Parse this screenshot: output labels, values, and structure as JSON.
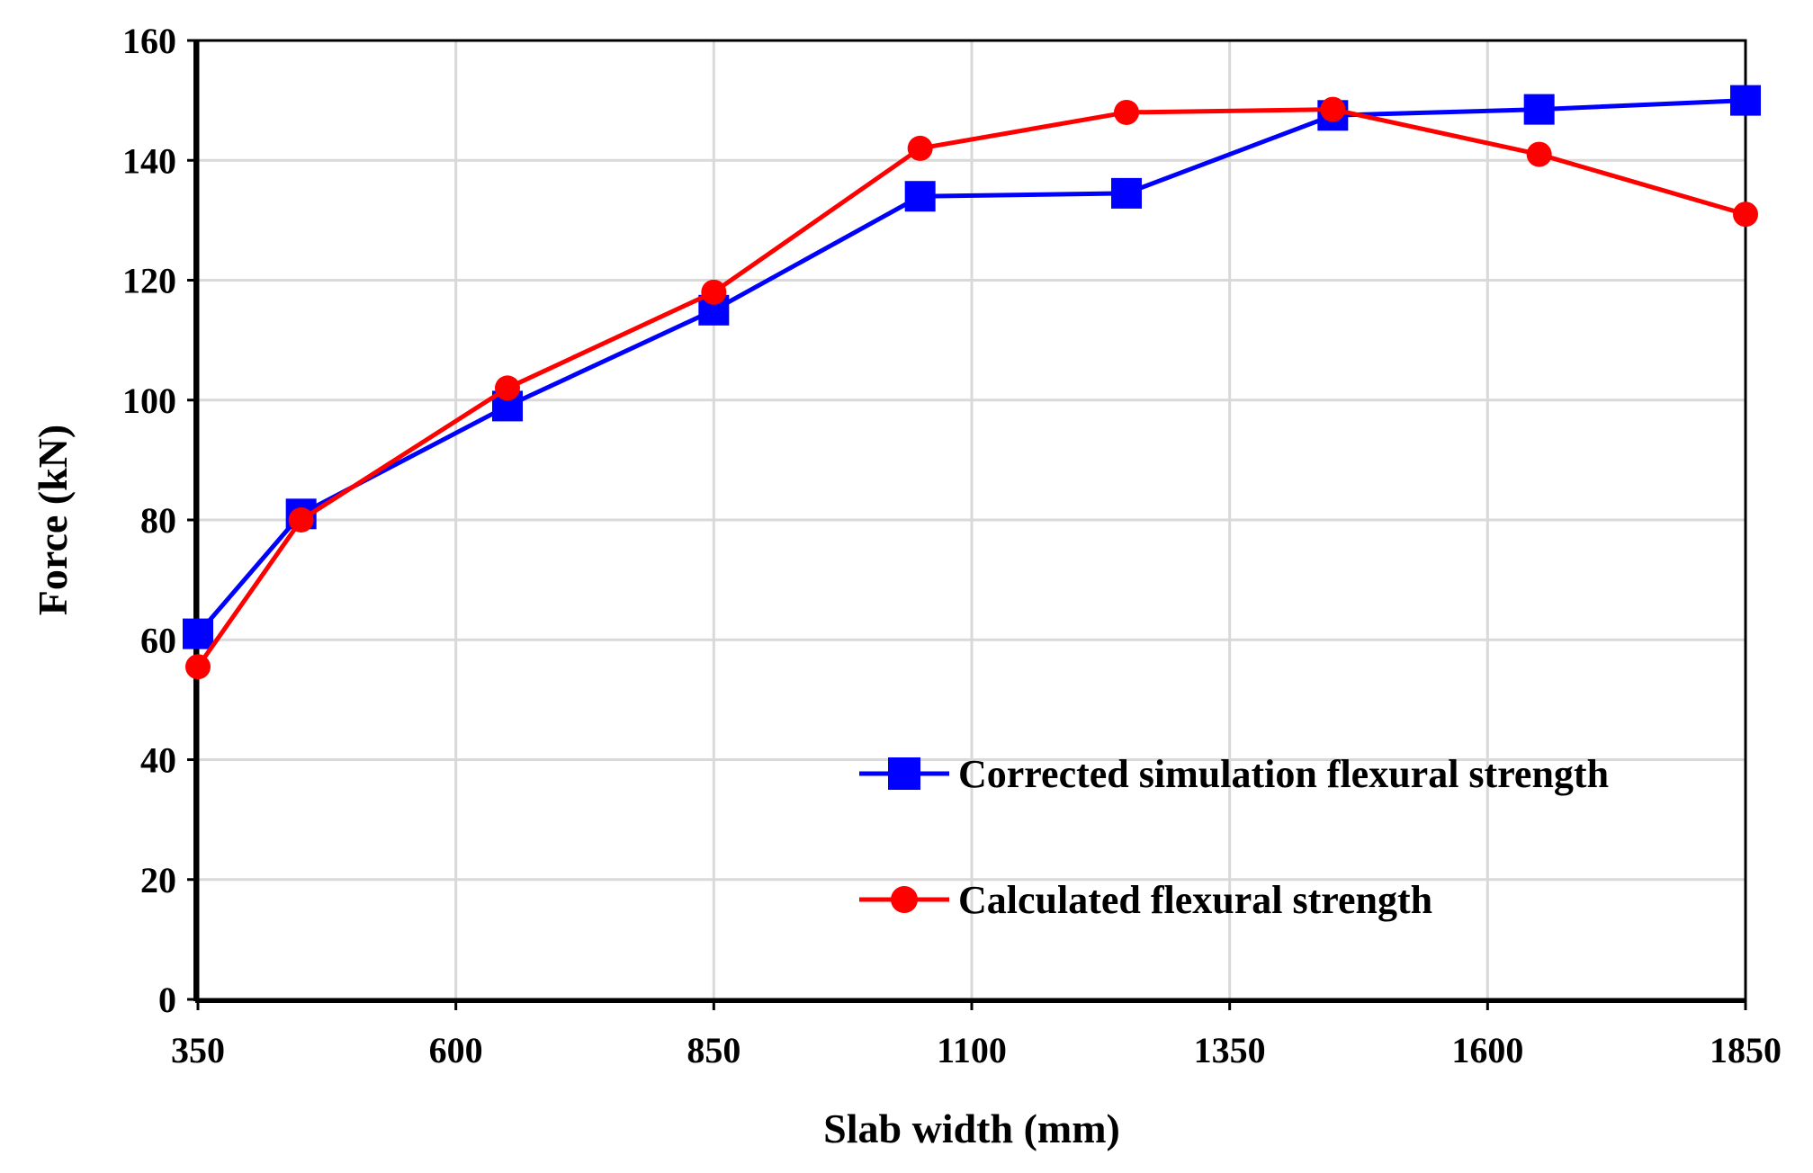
{
  "chart_data": {
    "type": "line",
    "title": "",
    "xlabel": "Slab width (mm)",
    "ylabel": "Force (kN)",
    "xlim": [
      350,
      1850
    ],
    "ylim": [
      0,
      160
    ],
    "x_ticks": [
      350,
      600,
      850,
      1100,
      1350,
      1600,
      1850
    ],
    "y_ticks": [
      0,
      20,
      40,
      60,
      80,
      100,
      120,
      140,
      160
    ],
    "grid": true,
    "legend_position": "lower-right",
    "series": [
      {
        "name": "Corrected simulation flexural strength",
        "color": "#0000ff",
        "marker": "square",
        "x": [
          350,
          450,
          650,
          850,
          1050,
          1250,
          1450,
          1650,
          1850
        ],
        "y": [
          61,
          81,
          99,
          115,
          134,
          134.5,
          147.5,
          148.5,
          150
        ]
      },
      {
        "name": "Calculated flexural strength",
        "color": "#ff0000",
        "marker": "circle",
        "x": [
          350,
          450,
          650,
          850,
          1050,
          1250,
          1450,
          1650,
          1850
        ],
        "y": [
          55.5,
          80,
          102,
          118,
          142,
          148,
          148.5,
          141,
          131
        ]
      }
    ]
  }
}
